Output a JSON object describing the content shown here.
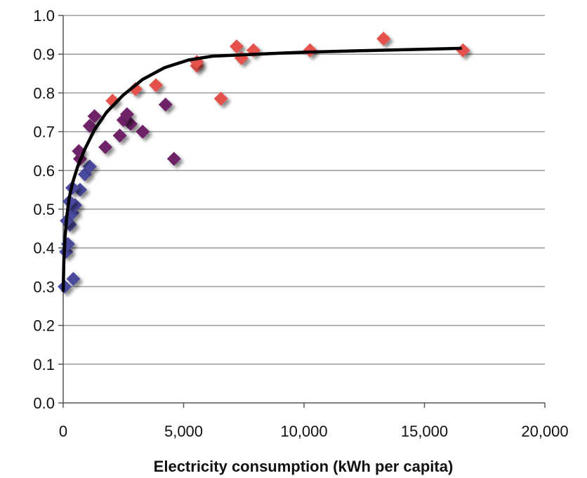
{
  "chart_data": {
    "type": "scatter",
    "title": "",
    "xlabel": "Electricity consumption (kWh per capita)",
    "ylabel": "",
    "xlim": [
      0,
      20000
    ],
    "ylim": [
      0,
      1.0
    ],
    "x_ticks": [
      0,
      5000,
      10000,
      15000,
      20000
    ],
    "x_tick_labels": [
      "0",
      "5,000",
      "10,000",
      "15,000",
      "20,000"
    ],
    "y_ticks": [
      0.0,
      0.1,
      0.2,
      0.3,
      0.4,
      0.5,
      0.6,
      0.7,
      0.8,
      0.9,
      1.0
    ],
    "y_tick_labels": [
      "0.0",
      "0.1",
      "0.2",
      "0.3",
      "0.4",
      "0.5",
      "0.6",
      "0.7",
      "0.8",
      "0.9",
      "1.0"
    ],
    "grid": "horizontal",
    "legend": "none",
    "colors": {
      "low": "#4a4a9e",
      "medium": "#6e2468",
      "high": "#e5514b",
      "trend": "#000000",
      "grid": "#9a9a9a"
    },
    "series": [
      {
        "color_key": "low",
        "points": [
          {
            "x": 60,
            "y": 0.3
          },
          {
            "x": 420,
            "y": 0.32
          },
          {
            "x": 120,
            "y": 0.39
          },
          {
            "x": 200,
            "y": 0.41
          },
          {
            "x": 280,
            "y": 0.46
          },
          {
            "x": 150,
            "y": 0.47
          },
          {
            "x": 380,
            "y": 0.49
          },
          {
            "x": 500,
            "y": 0.51
          },
          {
            "x": 260,
            "y": 0.52
          },
          {
            "x": 700,
            "y": 0.55
          },
          {
            "x": 380,
            "y": 0.555
          },
          {
            "x": 900,
            "y": 0.59
          },
          {
            "x": 1100,
            "y": 0.61
          }
        ]
      },
      {
        "color_key": "medium",
        "points": [
          {
            "x": 700,
            "y": 0.63
          },
          {
            "x": 650,
            "y": 0.65
          },
          {
            "x": 1750,
            "y": 0.66
          },
          {
            "x": 2350,
            "y": 0.69
          },
          {
            "x": 3300,
            "y": 0.7
          },
          {
            "x": 1100,
            "y": 0.715
          },
          {
            "x": 2800,
            "y": 0.72
          },
          {
            "x": 2500,
            "y": 0.73
          },
          {
            "x": 1300,
            "y": 0.74
          },
          {
            "x": 2650,
            "y": 0.745
          },
          {
            "x": 4250,
            "y": 0.77
          },
          {
            "x": 4600,
            "y": 0.63
          }
        ]
      },
      {
        "color_key": "high",
        "points": [
          {
            "x": 2050,
            "y": 0.78
          },
          {
            "x": 3000,
            "y": 0.81
          },
          {
            "x": 3850,
            "y": 0.82
          },
          {
            "x": 5550,
            "y": 0.87
          },
          {
            "x": 5550,
            "y": 0.88
          },
          {
            "x": 6550,
            "y": 0.785
          },
          {
            "x": 7200,
            "y": 0.92
          },
          {
            "x": 7400,
            "y": 0.89
          },
          {
            "x": 7900,
            "y": 0.91
          },
          {
            "x": 10250,
            "y": 0.91
          },
          {
            "x": 13300,
            "y": 0.94
          },
          {
            "x": 16600,
            "y": 0.91
          }
        ]
      }
    ],
    "trendline": [
      {
        "x": 0,
        "y": 0.29
      },
      {
        "x": 30,
        "y": 0.37
      },
      {
        "x": 80,
        "y": 0.43
      },
      {
        "x": 150,
        "y": 0.48
      },
      {
        "x": 250,
        "y": 0.53
      },
      {
        "x": 400,
        "y": 0.57
      },
      {
        "x": 600,
        "y": 0.61
      },
      {
        "x": 900,
        "y": 0.655
      },
      {
        "x": 1300,
        "y": 0.705
      },
      {
        "x": 1800,
        "y": 0.75
      },
      {
        "x": 2500,
        "y": 0.795
      },
      {
        "x": 3300,
        "y": 0.835
      },
      {
        "x": 4200,
        "y": 0.865
      },
      {
        "x": 5200,
        "y": 0.885
      },
      {
        "x": 6200,
        "y": 0.895
      },
      {
        "x": 8000,
        "y": 0.9
      },
      {
        "x": 10000,
        "y": 0.905
      },
      {
        "x": 13000,
        "y": 0.91
      },
      {
        "x": 16500,
        "y": 0.915
      }
    ]
  }
}
